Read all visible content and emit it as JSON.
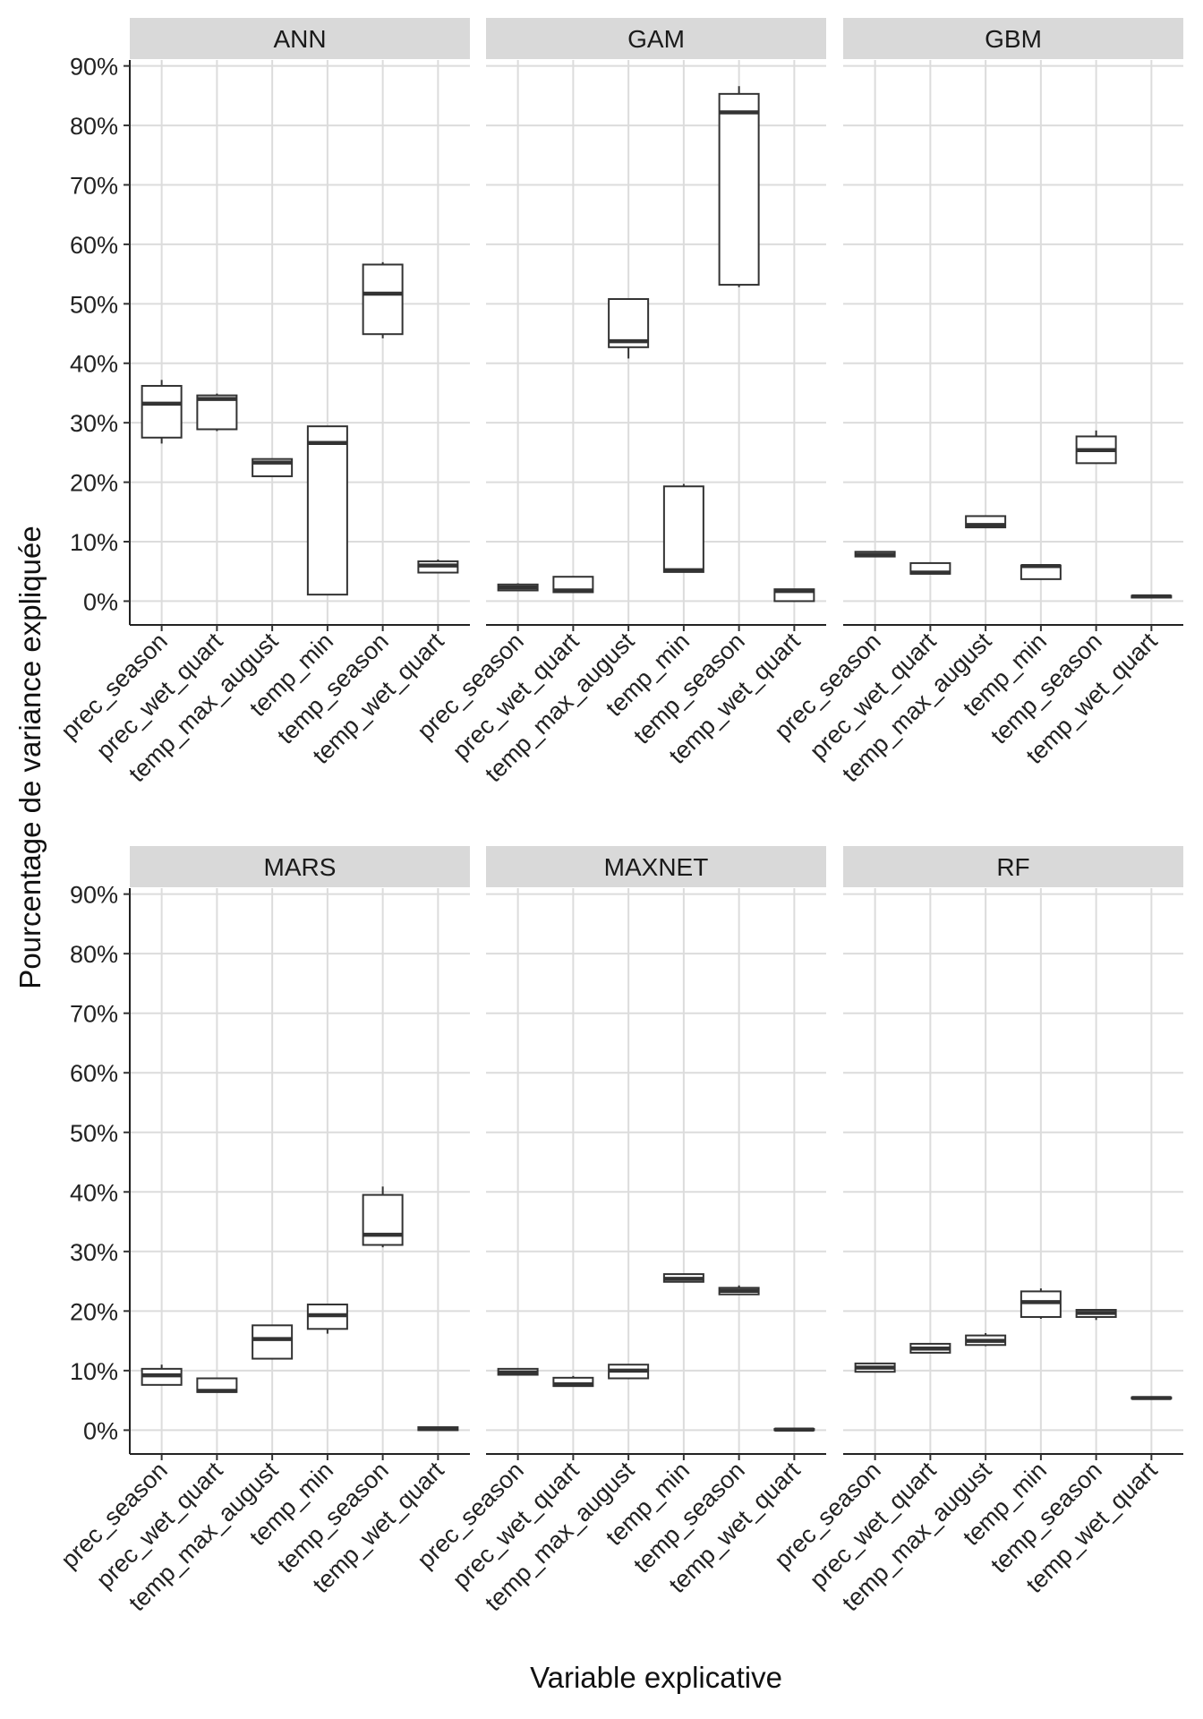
{
  "chart_data": {
    "type": "boxplot",
    "xlabel": "Variable explicative",
    "ylabel": "Pourcentage de variance expliquée",
    "ylim": [
      -4,
      91
    ],
    "y_ticks": [
      0,
      10,
      20,
      30,
      40,
      50,
      60,
      70,
      80,
      90
    ],
    "y_tick_labels": [
      "0%",
      "10%",
      "20%",
      "30%",
      "40%",
      "50%",
      "60%",
      "70%",
      "80%",
      "90%"
    ],
    "categories": [
      "prec_season",
      "prec_wet_quart",
      "temp_max_august",
      "temp_min",
      "temp_season",
      "temp_wet_quart"
    ],
    "panels": [
      {
        "name": "ANN",
        "boxes": [
          {
            "min": 26.5,
            "q1": 27.5,
            "median": 33.2,
            "q3": 36.2,
            "max": 37.2
          },
          {
            "min": 28.6,
            "q1": 28.9,
            "median": 34.0,
            "q3": 34.6,
            "max": 34.9
          },
          {
            "min": 21.0,
            "q1": 21.0,
            "median": 23.3,
            "q3": 23.9,
            "max": 24.0
          },
          {
            "min": 1.1,
            "q1": 1.1,
            "median": 26.6,
            "q3": 29.4,
            "max": 29.4
          },
          {
            "min": 44.2,
            "q1": 44.9,
            "median": 51.7,
            "q3": 56.6,
            "max": 57.0
          },
          {
            "min": 4.8,
            "q1": 4.8,
            "median": 6.0,
            "q3": 6.7,
            "max": 7.0
          }
        ]
      },
      {
        "name": "GAM",
        "boxes": [
          {
            "min": 1.8,
            "q1": 1.8,
            "median": 2.3,
            "q3": 2.8,
            "max": 3.0
          },
          {
            "min": 1.5,
            "q1": 1.5,
            "median": 1.8,
            "q3": 4.1,
            "max": 4.1
          },
          {
            "min": 40.8,
            "q1": 42.7,
            "median": 43.7,
            "q3": 50.8,
            "max": 50.8
          },
          {
            "min": 4.9,
            "q1": 4.9,
            "median": 5.2,
            "q3": 19.3,
            "max": 19.7
          },
          {
            "min": 52.8,
            "q1": 53.2,
            "median": 82.2,
            "q3": 85.3,
            "max": 86.6
          },
          {
            "min": 0.0,
            "q1": 0.0,
            "median": 1.7,
            "q3": 2.0,
            "max": 2.0
          }
        ]
      },
      {
        "name": "GBM",
        "boxes": [
          {
            "min": 7.4,
            "q1": 7.5,
            "median": 7.8,
            "q3": 8.3,
            "max": 8.4
          },
          {
            "min": 4.5,
            "q1": 4.6,
            "median": 4.8,
            "q3": 6.4,
            "max": 6.4
          },
          {
            "min": 12.3,
            "q1": 12.4,
            "median": 12.8,
            "q3": 14.3,
            "max": 14.3
          },
          {
            "min": 3.7,
            "q1": 3.7,
            "median": 5.9,
            "q3": 6.0,
            "max": 6.0
          },
          {
            "min": 23.1,
            "q1": 23.2,
            "median": 25.4,
            "q3": 27.7,
            "max": 28.7
          },
          {
            "min": 0.5,
            "q1": 0.6,
            "median": 0.8,
            "q3": 0.9,
            "max": 0.9
          }
        ]
      },
      {
        "name": "MARS",
        "boxes": [
          {
            "min": 7.6,
            "q1": 7.6,
            "median": 9.2,
            "q3": 10.3,
            "max": 11.0
          },
          {
            "min": 6.3,
            "q1": 6.4,
            "median": 6.6,
            "q3": 8.7,
            "max": 8.8
          },
          {
            "min": 12.0,
            "q1": 12.0,
            "median": 15.3,
            "q3": 17.6,
            "max": 17.6
          },
          {
            "min": 16.2,
            "q1": 17.0,
            "median": 19.3,
            "q3": 21.1,
            "max": 21.1
          },
          {
            "min": 30.7,
            "q1": 31.1,
            "median": 32.8,
            "q3": 39.5,
            "max": 40.9
          },
          {
            "min": 0.0,
            "q1": 0.0,
            "median": 0.2,
            "q3": 0.5,
            "max": 0.5
          }
        ]
      },
      {
        "name": "MAXNET",
        "boxes": [
          {
            "min": 9.3,
            "q1": 9.3,
            "median": 9.7,
            "q3": 10.3,
            "max": 10.3
          },
          {
            "min": 7.4,
            "q1": 7.4,
            "median": 7.7,
            "q3": 8.8,
            "max": 9.1
          },
          {
            "min": 8.7,
            "q1": 8.7,
            "median": 10.0,
            "q3": 11.0,
            "max": 11.0
          },
          {
            "min": 24.8,
            "q1": 24.9,
            "median": 25.4,
            "q3": 26.2,
            "max": 26.3
          },
          {
            "min": 22.7,
            "q1": 22.8,
            "median": 23.4,
            "q3": 23.9,
            "max": 24.3
          },
          {
            "min": 0.0,
            "q1": 0.0,
            "median": 0.1,
            "q3": 0.2,
            "max": 0.2
          }
        ]
      },
      {
        "name": "RF",
        "boxes": [
          {
            "min": 9.8,
            "q1": 9.8,
            "median": 10.5,
            "q3": 11.2,
            "max": 11.2
          },
          {
            "min": 13.0,
            "q1": 13.0,
            "median": 13.7,
            "q3": 14.5,
            "max": 14.5
          },
          {
            "min": 14.1,
            "q1": 14.3,
            "median": 15.0,
            "q3": 15.9,
            "max": 16.3
          },
          {
            "min": 18.7,
            "q1": 19.0,
            "median": 21.5,
            "q3": 23.3,
            "max": 23.8
          },
          {
            "min": 18.5,
            "q1": 19.0,
            "median": 19.7,
            "q3": 20.2,
            "max": 20.3
          },
          {
            "min": 5.3,
            "q1": 5.3,
            "median": 5.4,
            "q3": 5.5,
            "max": 5.5
          }
        ]
      }
    ]
  }
}
